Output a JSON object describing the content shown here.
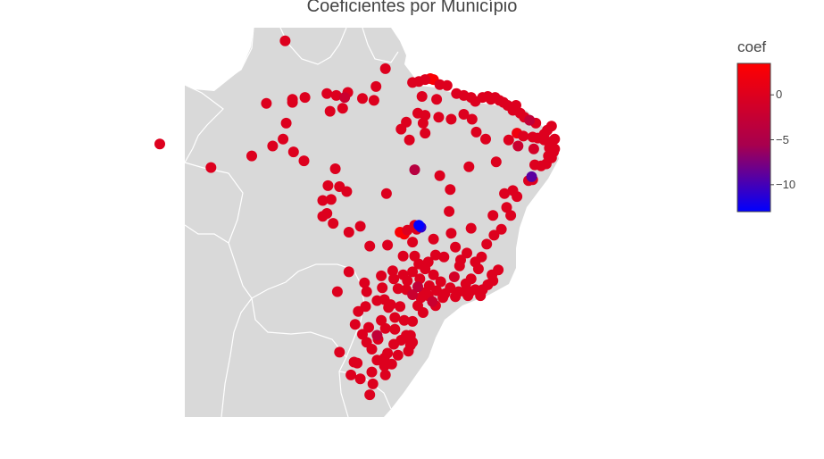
{
  "title": "Coeficientes por Município",
  "colorbar": {
    "title": "coef",
    "min": -13,
    "max": 3.5,
    "colors": {
      "high": "#ff0000",
      "mid": "#a8004e",
      "low": "#0000ff"
    },
    "ticks": [
      {
        "label": "0",
        "value": 0
      },
      {
        "label": "−5",
        "value": -5
      },
      {
        "label": "−10",
        "value": -10
      }
    ]
  },
  "map": {
    "land_color": "#d9d9d9",
    "border_color": "#ffffff"
  },
  "points": [
    {
      "lon": -60.7,
      "lat": 2.8,
      "coef": 0
    },
    {
      "lon": -51.1,
      "lat": 0.0,
      "coef": 0
    },
    {
      "lon": -48.5,
      "lat": -1.4,
      "coef": 0
    },
    {
      "lon": -47.9,
      "lat": -1.3,
      "coef": 0
    },
    {
      "lon": -47.3,
      "lat": -1.1,
      "coef": 0
    },
    {
      "lon": -46.8,
      "lat": -1.0,
      "coef": 3
    },
    {
      "lon": -46.5,
      "lat": -1.1,
      "coef": 3
    },
    {
      "lon": -45.9,
      "lat": -1.6,
      "coef": 0
    },
    {
      "lon": -45.2,
      "lat": -1.7,
      "coef": 0
    },
    {
      "lon": -47.6,
      "lat": -2.8,
      "coef": 0
    },
    {
      "lon": -46.2,
      "lat": -3.1,
      "coef": 0
    },
    {
      "lon": -44.3,
      "lat": -2.5,
      "coef": 0
    },
    {
      "lon": -43.6,
      "lat": -2.7,
      "coef": 0
    },
    {
      "lon": -42.9,
      "lat": -2.9,
      "coef": 0
    },
    {
      "lon": -42.5,
      "lat": -3.3,
      "coef": 0
    },
    {
      "lon": -41.8,
      "lat": -2.9,
      "coef": 0
    },
    {
      "lon": -41.3,
      "lat": -2.8,
      "coef": 0
    },
    {
      "lon": -41.0,
      "lat": -3.1,
      "coef": 0
    },
    {
      "lon": -40.6,
      "lat": -2.9,
      "coef": 0
    },
    {
      "lon": -40.2,
      "lat": -3.2,
      "coef": 0
    },
    {
      "lon": -39.8,
      "lat": -3.4,
      "coef": 0
    },
    {
      "lon": -39.4,
      "lat": -3.7,
      "coef": 0
    },
    {
      "lon": -38.6,
      "lat": -3.7,
      "coef": 0
    },
    {
      "lon": -38.9,
      "lat": -4.2,
      "coef": 0
    },
    {
      "lon": -38.2,
      "lat": -4.5,
      "coef": 0
    },
    {
      "lon": -37.8,
      "lat": -4.9,
      "coef": 0
    },
    {
      "lon": -37.3,
      "lat": -5.2,
      "coef": -3
    },
    {
      "lon": -36.7,
      "lat": -5.5,
      "coef": 0
    },
    {
      "lon": -35.2,
      "lat": -5.8,
      "coef": 0
    },
    {
      "lon": -35.6,
      "lat": -6.2,
      "coef": 0
    },
    {
      "lon": -35.9,
      "lat": -6.6,
      "coef": 0
    },
    {
      "lon": -34.9,
      "lat": -7.1,
      "coef": 0
    },
    {
      "lon": -35.3,
      "lat": -7.4,
      "coef": 0
    },
    {
      "lon": -35.9,
      "lat": -7.2,
      "coef": 0
    },
    {
      "lon": -36.5,
      "lat": -7.0,
      "coef": 0
    },
    {
      "lon": -37.0,
      "lat": -6.9,
      "coef": 0
    },
    {
      "lon": -37.9,
      "lat": -6.8,
      "coef": 0
    },
    {
      "lon": -38.5,
      "lat": -6.5,
      "coef": 2
    },
    {
      "lon": -39.3,
      "lat": -7.2,
      "coef": 0
    },
    {
      "lon": -38.4,
      "lat": -7.8,
      "coef": -2
    },
    {
      "lon": -36.9,
      "lat": -8.1,
      "coef": -1
    },
    {
      "lon": -35.4,
      "lat": -8.0,
      "coef": 0
    },
    {
      "lon": -34.9,
      "lat": -8.1,
      "coef": 0
    },
    {
      "lon": -35.0,
      "lat": -8.4,
      "coef": 0
    },
    {
      "lon": -35.5,
      "lat": -8.8,
      "coef": 0
    },
    {
      "lon": -35.2,
      "lat": -9.0,
      "coef": 0
    },
    {
      "lon": -35.7,
      "lat": -9.6,
      "coef": 0
    },
    {
      "lon": -36.2,
      "lat": -9.8,
      "coef": 0
    },
    {
      "lon": -36.8,
      "lat": -9.7,
      "coef": 0
    },
    {
      "lon": -37.1,
      "lat": -10.9,
      "coef": -9
    },
    {
      "lon": -37.4,
      "lat": -11.3,
      "coef": 0
    },
    {
      "lon": -37.0,
      "lat": -11.2,
      "coef": 0
    },
    {
      "lon": -38.5,
      "lat": -12.9,
      "coef": 0
    },
    {
      "lon": -38.9,
      "lat": -12.3,
      "coef": 0
    },
    {
      "lon": -39.7,
      "lat": -12.6,
      "coef": 0
    },
    {
      "lon": -39.1,
      "lat": -14.8,
      "coef": 0
    },
    {
      "lon": -39.5,
      "lat": -14.0,
      "coef": 0
    },
    {
      "lon": -40.8,
      "lat": -14.8,
      "coef": 0
    },
    {
      "lon": -40.0,
      "lat": -16.2,
      "coef": 0
    },
    {
      "lon": -40.7,
      "lat": -16.8,
      "coef": 0
    },
    {
      "lon": -41.4,
      "lat": -17.7,
      "coef": 0
    },
    {
      "lon": -42.9,
      "lat": -16.1,
      "coef": 0
    },
    {
      "lon": -44.8,
      "lat": -16.6,
      "coef": 0
    },
    {
      "lon": -46.5,
      "lat": -17.2,
      "coef": 0
    },
    {
      "lon": -48.3,
      "lat": -15.8,
      "coef": 0
    },
    {
      "lon": -47.9,
      "lat": -15.8,
      "coef": -13
    },
    {
      "lon": -47.7,
      "lat": -16.0,
      "coef": -11
    },
    {
      "lon": -48.1,
      "lat": -16.2,
      "coef": 0
    },
    {
      "lon": -49.3,
      "lat": -16.7,
      "coef": 3
    },
    {
      "lon": -49.7,
      "lat": -16.5,
      "coef": 3
    },
    {
      "lon": -49.0,
      "lat": -16.3,
      "coef": 0
    },
    {
      "lon": -48.5,
      "lat": -17.5,
      "coef": 0
    },
    {
      "lon": -50.9,
      "lat": -17.8,
      "coef": 0
    },
    {
      "lon": -52.6,
      "lat": -17.9,
      "coef": 0
    },
    {
      "lon": -49.4,
      "lat": -18.9,
      "coef": 0
    },
    {
      "lon": -48.3,
      "lat": -18.9,
      "coef": 0
    },
    {
      "lon": -47.9,
      "lat": -19.7,
      "coef": 0
    },
    {
      "lon": -47.0,
      "lat": -19.5,
      "coef": 0
    },
    {
      "lon": -45.5,
      "lat": -19.0,
      "coef": 0
    },
    {
      "lon": -44.0,
      "lat": -19.9,
      "coef": 0
    },
    {
      "lon": -43.9,
      "lat": -19.3,
      "coef": 0
    },
    {
      "lon": -42.5,
      "lat": -19.5,
      "coef": 0
    },
    {
      "lon": -41.9,
      "lat": -19.0,
      "coef": 0
    },
    {
      "lon": -40.3,
      "lat": -20.3,
      "coef": 0
    },
    {
      "lon": -40.9,
      "lat": -20.8,
      "coef": 0
    },
    {
      "lon": -41.3,
      "lat": -21.8,
      "coef": 0
    },
    {
      "lon": -42.9,
      "lat": -21.2,
      "coef": 0
    },
    {
      "lon": -43.5,
      "lat": -22.5,
      "coef": 0
    },
    {
      "lon": -43.2,
      "lat": -22.9,
      "coef": 0
    },
    {
      "lon": -42.0,
      "lat": -22.9,
      "coef": 0
    },
    {
      "lon": -44.1,
      "lat": -22.5,
      "coef": 0
    },
    {
      "lon": -44.9,
      "lat": -22.1,
      "coef": 0
    },
    {
      "lon": -45.4,
      "lat": -22.7,
      "coef": 0
    },
    {
      "lon": -46.6,
      "lat": -23.5,
      "coef": -2
    },
    {
      "lon": -46.3,
      "lat": -23.9,
      "coef": 0
    },
    {
      "lon": -47.0,
      "lat": -22.9,
      "coef": 0
    },
    {
      "lon": -47.4,
      "lat": -22.6,
      "coef": 0
    },
    {
      "lon": -48.0,
      "lat": -22.0,
      "coef": -3
    },
    {
      "lon": -47.8,
      "lat": -21.2,
      "coef": 0
    },
    {
      "lon": -48.5,
      "lat": -20.5,
      "coef": 0
    },
    {
      "lon": -49.4,
      "lat": -20.8,
      "coef": 0
    },
    {
      "lon": -50.4,
      "lat": -20.4,
      "coef": 0
    },
    {
      "lon": -49.9,
      "lat": -22.2,
      "coef": 0
    },
    {
      "lon": -51.4,
      "lat": -22.1,
      "coef": 0
    },
    {
      "lon": -53.1,
      "lat": -21.6,
      "coef": 0
    },
    {
      "lon": -54.6,
      "lat": -20.5,
      "coef": 0
    },
    {
      "lon": -55.7,
      "lat": -22.5,
      "coef": 0
    },
    {
      "lon": -51.2,
      "lat": -23.3,
      "coef": 0
    },
    {
      "lon": -51.9,
      "lat": -23.4,
      "coef": 0
    },
    {
      "lon": -53.0,
      "lat": -24.0,
      "coef": 0
    },
    {
      "lon": -50.2,
      "lat": -25.1,
      "coef": 0
    },
    {
      "lon": -49.3,
      "lat": -25.4,
      "coef": 0
    },
    {
      "lon": -48.5,
      "lat": -25.5,
      "coef": 0
    },
    {
      "lon": -52.7,
      "lat": -26.1,
      "coef": 0
    },
    {
      "lon": -51.1,
      "lat": -26.2,
      "coef": 0
    },
    {
      "lon": -49.1,
      "lat": -26.9,
      "coef": 0
    },
    {
      "lon": -48.7,
      "lat": -26.9,
      "coef": 0
    },
    {
      "lon": -49.6,
      "lat": -27.4,
      "coef": 0
    },
    {
      "lon": -48.5,
      "lat": -27.6,
      "coef": 0
    },
    {
      "lon": -50.3,
      "lat": -27.8,
      "coef": 0
    },
    {
      "lon": -52.4,
      "lat": -28.3,
      "coef": 0
    },
    {
      "lon": -51.2,
      "lat": -29.2,
      "coef": 0
    },
    {
      "lon": -51.2,
      "lat": -30.0,
      "coef": 0
    },
    {
      "lon": -50.5,
      "lat": -29.8,
      "coef": 0
    },
    {
      "lon": -53.8,
      "lat": -29.7,
      "coef": 0
    },
    {
      "lon": -55.5,
      "lat": -28.6,
      "coef": 0
    },
    {
      "lon": -52.3,
      "lat": -31.8,
      "coef": 0
    },
    {
      "lon": -52.6,
      "lat": -32.9,
      "coef": 0
    },
    {
      "lon": -49.9,
      "lat": -28.9,
      "coef": 0
    },
    {
      "lon": -48.9,
      "lat": -28.5,
      "coef": 0
    },
    {
      "lon": -51.9,
      "lat": -26.9,
      "coef": -3
    },
    {
      "lon": -54.0,
      "lat": -25.8,
      "coef": 0
    },
    {
      "lon": -56.1,
      "lat": -15.6,
      "coef": 0
    },
    {
      "lon": -54.6,
      "lat": -16.5,
      "coef": 0
    },
    {
      "lon": -55.5,
      "lat": -11.9,
      "coef": 0
    },
    {
      "lon": -56.3,
      "lat": -13.2,
      "coef": 0
    },
    {
      "lon": -56.6,
      "lat": -11.8,
      "coef": 0
    },
    {
      "lon": -55.9,
      "lat": -10.1,
      "coef": 0
    },
    {
      "lon": -56.7,
      "lat": -14.6,
      "coef": 0
    },
    {
      "lon": -57.1,
      "lat": -14.9,
      "coef": 0
    },
    {
      "lon": -53.5,
      "lat": -15.9,
      "coef": 0
    },
    {
      "lon": -51.0,
      "lat": -12.6,
      "coef": 0
    },
    {
      "lon": -48.3,
      "lat": -10.2,
      "coef": -4
    },
    {
      "lon": -48.8,
      "lat": -7.2,
      "coef": 0
    },
    {
      "lon": -47.5,
      "lat": -5.5,
      "coef": 0
    },
    {
      "lon": -49.1,
      "lat": -5.4,
      "coef": 0
    },
    {
      "lon": -49.6,
      "lat": -6.1,
      "coef": 0
    },
    {
      "lon": -52.2,
      "lat": -3.2,
      "coef": 0
    },
    {
      "lon": -54.7,
      "lat": -2.4,
      "coef": 0
    },
    {
      "lon": -55.0,
      "lat": -2.9,
      "coef": -2
    },
    {
      "lon": -55.8,
      "lat": -2.7,
      "coef": 0
    },
    {
      "lon": -56.7,
      "lat": -2.5,
      "coef": 0
    },
    {
      "lon": -58.8,
      "lat": -2.9,
      "coef": 0
    },
    {
      "lon": -60.0,
      "lat": -3.1,
      "coef": 0
    },
    {
      "lon": -60.0,
      "lat": -3.4,
      "coef": 0
    },
    {
      "lon": -62.5,
      "lat": -3.5,
      "coef": 0
    },
    {
      "lon": -60.6,
      "lat": -5.5,
      "coef": 0
    },
    {
      "lon": -60.9,
      "lat": -7.1,
      "coef": 0
    },
    {
      "lon": -63.9,
      "lat": -8.8,
      "coef": 0
    },
    {
      "lon": -61.9,
      "lat": -7.8,
      "coef": 0
    },
    {
      "lon": -59.9,
      "lat": -8.4,
      "coef": 0
    },
    {
      "lon": -58.9,
      "lat": -9.3,
      "coef": 0
    },
    {
      "lon": -56.4,
      "lat": -4.3,
      "coef": 0
    },
    {
      "lon": -55.2,
      "lat": -4.0,
      "coef": 0
    },
    {
      "lon": -48.0,
      "lat": -4.5,
      "coef": 0
    },
    {
      "lon": -47.3,
      "lat": -4.7,
      "coef": 0
    },
    {
      "lon": -46.0,
      "lat": -4.9,
      "coef": 0
    },
    {
      "lon": -44.8,
      "lat": -5.1,
      "coef": 0
    },
    {
      "lon": -43.6,
      "lat": -4.6,
      "coef": 0
    },
    {
      "lon": -42.8,
      "lat": -5.1,
      "coef": 0
    },
    {
      "lon": -42.4,
      "lat": -6.4,
      "coef": 0
    },
    {
      "lon": -41.5,
      "lat": -7.1,
      "coef": 0
    },
    {
      "lon": -40.5,
      "lat": -9.4,
      "coef": 0
    },
    {
      "lon": -43.1,
      "lat": -9.9,
      "coef": 0
    },
    {
      "lon": -45.9,
      "lat": -10.8,
      "coef": 0
    },
    {
      "lon": -44.9,
      "lat": -12.2,
      "coef": 0
    },
    {
      "lon": -45.0,
      "lat": -14.4,
      "coef": 0
    },
    {
      "lon": -47.3,
      "lat": -6.5,
      "coef": 0
    },
    {
      "lon": -67.8,
      "lat": -9.97,
      "coef": 0
    },
    {
      "lon": -72.7,
      "lat": -7.6,
      "coef": 0
    },
    {
      "lon": -52.0,
      "lat": -1.8,
      "coef": 0
    },
    {
      "lon": -53.3,
      "lat": -3.0,
      "coef": 0
    },
    {
      "lon": -54.8,
      "lat": -12.4,
      "coef": 0
    },
    {
      "lon": -57.1,
      "lat": -13.3,
      "coef": 0
    },
    {
      "lon": -46.5,
      "lat": -20.8,
      "coef": 0
    },
    {
      "lon": -45.8,
      "lat": -21.5,
      "coef": 0
    },
    {
      "lon": -44.5,
      "lat": -21.0,
      "coef": -1
    },
    {
      "lon": -43.4,
      "lat": -21.7,
      "coef": 0
    },
    {
      "lon": -46.9,
      "lat": -21.9,
      "coef": 0
    },
    {
      "lon": -47.7,
      "lat": -23.1,
      "coef": 0
    },
    {
      "lon": -46.2,
      "lat": -22.4,
      "coef": 0
    },
    {
      "lon": -45.6,
      "lat": -23.1,
      "coef": 0
    },
    {
      "lon": -44.4,
      "lat": -23.0,
      "coef": 0
    },
    {
      "lon": -43.0,
      "lat": -22.5,
      "coef": 0
    },
    {
      "lon": -42.5,
      "lat": -22.3,
      "coef": 0
    },
    {
      "lon": -41.8,
      "lat": -22.3,
      "coef": 0
    },
    {
      "lon": -40.8,
      "lat": -21.4,
      "coef": 0
    },
    {
      "lon": -42.2,
      "lat": -20.2,
      "coef": 0
    },
    {
      "lon": -43.3,
      "lat": -18.6,
      "coef": 0
    },
    {
      "lon": -44.4,
      "lat": -18.0,
      "coef": 0
    },
    {
      "lon": -46.3,
      "lat": -18.8,
      "coef": 0
    },
    {
      "lon": -47.3,
      "lat": -20.2,
      "coef": 0
    },
    {
      "lon": -48.0,
      "lat": -23.9,
      "coef": 0
    },
    {
      "lon": -47.5,
      "lat": -24.6,
      "coef": 0
    },
    {
      "lon": -49.7,
      "lat": -24.0,
      "coef": 0
    },
    {
      "lon": -50.6,
      "lat": -23.8,
      "coef": 0
    },
    {
      "lon": -49.1,
      "lat": -22.3,
      "coef": 0
    },
    {
      "lon": -48.5,
      "lat": -22.8,
      "coef": -2
    },
    {
      "lon": -49.0,
      "lat": -21.4,
      "coef": 0
    },
    {
      "lon": -50.3,
      "lat": -21.2,
      "coef": 0
    },
    {
      "lon": -51.5,
      "lat": -20.9,
      "coef": 0
    },
    {
      "lon": -52.9,
      "lat": -22.5,
      "coef": 0
    },
    {
      "lon": -53.7,
      "lat": -24.5,
      "coef": 0
    },
    {
      "lon": -51.5,
      "lat": -25.4,
      "coef": 0
    },
    {
      "lon": -50.8,
      "lat": -24.1,
      "coef": 0
    },
    {
      "lon": -53.3,
      "lat": -26.8,
      "coef": 0
    },
    {
      "lon": -51.8,
      "lat": -27.3,
      "coef": 0
    },
    {
      "lon": -52.9,
      "lat": -27.6,
      "coef": 0
    },
    {
      "lon": -50.9,
      "lat": -28.7,
      "coef": 0
    },
    {
      "lon": -51.9,
      "lat": -29.4,
      "coef": 0
    },
    {
      "lon": -52.4,
      "lat": -30.6,
      "coef": 0
    },
    {
      "lon": -54.1,
      "lat": -29.6,
      "coef": 0
    },
    {
      "lon": -53.5,
      "lat": -31.3,
      "coef": 0
    },
    {
      "lon": -54.4,
      "lat": -30.9,
      "coef": 0
    },
    {
      "lon": -51.1,
      "lat": -30.9,
      "coef": 0
    },
    {
      "lon": -50.2,
      "lat": -26.3,
      "coef": 0
    },
    {
      "lon": -49.1,
      "lat": -27.1,
      "coef": 0
    },
    {
      "lon": -48.7,
      "lat": -27.9,
      "coef": 0
    }
  ]
}
